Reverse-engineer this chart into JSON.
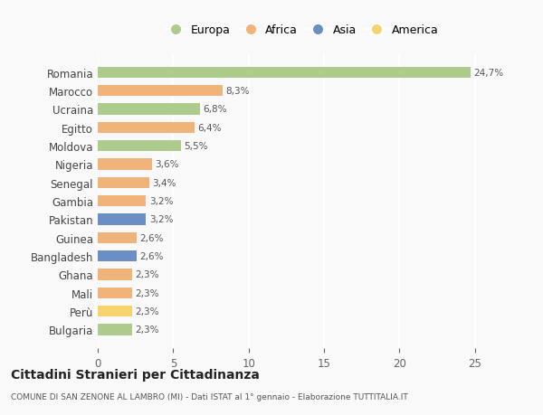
{
  "countries": [
    "Romania",
    "Marocco",
    "Ucraina",
    "Egitto",
    "Moldova",
    "Nigeria",
    "Senegal",
    "Gambia",
    "Pakistan",
    "Guinea",
    "Bangladesh",
    "Ghana",
    "Mali",
    "Perù",
    "Bulgaria"
  ],
  "values": [
    24.7,
    8.3,
    6.8,
    6.4,
    5.5,
    3.6,
    3.4,
    3.2,
    3.2,
    2.6,
    2.6,
    2.3,
    2.3,
    2.3,
    2.3
  ],
  "labels": [
    "24,7%",
    "8,3%",
    "6,8%",
    "6,4%",
    "5,5%",
    "3,6%",
    "3,4%",
    "3,2%",
    "3,2%",
    "2,6%",
    "2,6%",
    "2,3%",
    "2,3%",
    "2,3%",
    "2,3%"
  ],
  "continents": [
    "Europa",
    "Africa",
    "Europa",
    "Africa",
    "Europa",
    "Africa",
    "Africa",
    "Africa",
    "Asia",
    "Africa",
    "Asia",
    "Africa",
    "Africa",
    "America",
    "Europa"
  ],
  "colors": {
    "Europa": "#aecb8e",
    "Africa": "#f0b47a",
    "Asia": "#6b8fc4",
    "America": "#f5d36e"
  },
  "legend_order": [
    "Europa",
    "Africa",
    "Asia",
    "America"
  ],
  "title": "Cittadini Stranieri per Cittadinanza",
  "subtitle": "COMUNE DI SAN ZENONE AL LAMBRO (MI) - Dati ISTAT al 1° gennaio - Elaborazione TUTTITALIA.IT",
  "xlim": [
    0,
    27
  ],
  "xticks": [
    0,
    5,
    10,
    15,
    20,
    25
  ],
  "background_color": "#f9f9f9",
  "grid_color": "#ffffff"
}
